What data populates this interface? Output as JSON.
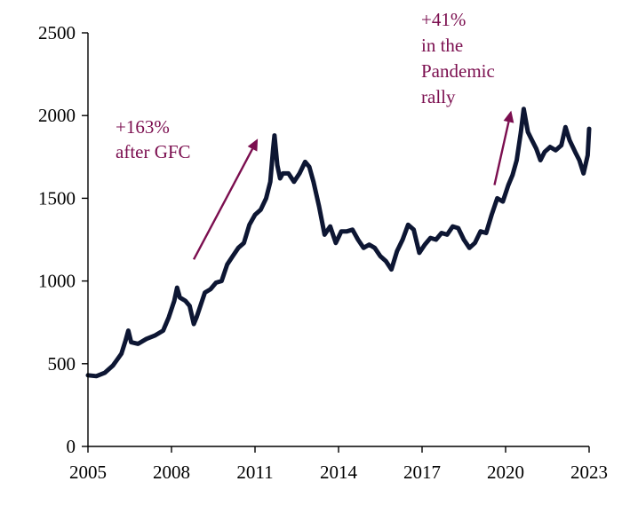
{
  "chart_data": {
    "type": "line",
    "title": "",
    "xlabel": "",
    "ylabel": "",
    "xlim": [
      2005,
      2023
    ],
    "ylim": [
      0,
      2500
    ],
    "x_ticks": [
      "2005",
      "2008",
      "2011",
      "2014",
      "2017",
      "2020",
      "2023"
    ],
    "y_ticks": [
      "0",
      "500",
      "1000",
      "1500",
      "2000",
      "2500"
    ],
    "grid": false,
    "legend": "none",
    "series": [
      {
        "color": "#0d1633",
        "points": [
          [
            2005.0,
            430
          ],
          [
            2005.3,
            425
          ],
          [
            2005.6,
            445
          ],
          [
            2005.9,
            490
          ],
          [
            2006.2,
            560
          ],
          [
            2006.35,
            640
          ],
          [
            2006.45,
            700
          ],
          [
            2006.55,
            630
          ],
          [
            2006.8,
            620
          ],
          [
            2007.1,
            650
          ],
          [
            2007.4,
            670
          ],
          [
            2007.7,
            700
          ],
          [
            2007.9,
            780
          ],
          [
            2008.1,
            880
          ],
          [
            2008.2,
            960
          ],
          [
            2008.3,
            900
          ],
          [
            2008.5,
            880
          ],
          [
            2008.65,
            850
          ],
          [
            2008.8,
            740
          ],
          [
            2008.9,
            780
          ],
          [
            2009.0,
            830
          ],
          [
            2009.2,
            930
          ],
          [
            2009.4,
            950
          ],
          [
            2009.6,
            990
          ],
          [
            2009.8,
            1000
          ],
          [
            2010.0,
            1100
          ],
          [
            2010.2,
            1150
          ],
          [
            2010.4,
            1200
          ],
          [
            2010.6,
            1230
          ],
          [
            2010.8,
            1340
          ],
          [
            2011.0,
            1400
          ],
          [
            2011.2,
            1430
          ],
          [
            2011.4,
            1500
          ],
          [
            2011.55,
            1600
          ],
          [
            2011.65,
            1800
          ],
          [
            2011.7,
            1880
          ],
          [
            2011.8,
            1700
          ],
          [
            2011.9,
            1620
          ],
          [
            2012.0,
            1650
          ],
          [
            2012.2,
            1650
          ],
          [
            2012.4,
            1600
          ],
          [
            2012.6,
            1650
          ],
          [
            2012.8,
            1720
          ],
          [
            2012.95,
            1690
          ],
          [
            2013.1,
            1600
          ],
          [
            2013.3,
            1450
          ],
          [
            2013.5,
            1280
          ],
          [
            2013.7,
            1330
          ],
          [
            2013.9,
            1230
          ],
          [
            2014.1,
            1300
          ],
          [
            2014.3,
            1300
          ],
          [
            2014.5,
            1310
          ],
          [
            2014.7,
            1250
          ],
          [
            2014.9,
            1200
          ],
          [
            2015.1,
            1220
          ],
          [
            2015.3,
            1200
          ],
          [
            2015.5,
            1150
          ],
          [
            2015.7,
            1120
          ],
          [
            2015.9,
            1070
          ],
          [
            2016.1,
            1180
          ],
          [
            2016.3,
            1250
          ],
          [
            2016.5,
            1340
          ],
          [
            2016.7,
            1310
          ],
          [
            2016.9,
            1170
          ],
          [
            2017.1,
            1220
          ],
          [
            2017.3,
            1260
          ],
          [
            2017.5,
            1250
          ],
          [
            2017.7,
            1290
          ],
          [
            2017.9,
            1280
          ],
          [
            2018.1,
            1330
          ],
          [
            2018.3,
            1320
          ],
          [
            2018.5,
            1250
          ],
          [
            2018.7,
            1200
          ],
          [
            2018.9,
            1230
          ],
          [
            2019.1,
            1300
          ],
          [
            2019.3,
            1290
          ],
          [
            2019.5,
            1400
          ],
          [
            2019.7,
            1500
          ],
          [
            2019.9,
            1480
          ],
          [
            2020.1,
            1580
          ],
          [
            2020.25,
            1640
          ],
          [
            2020.4,
            1730
          ],
          [
            2020.55,
            1900
          ],
          [
            2020.65,
            2040
          ],
          [
            2020.8,
            1900
          ],
          [
            2020.95,
            1850
          ],
          [
            2021.1,
            1800
          ],
          [
            2021.25,
            1730
          ],
          [
            2021.4,
            1780
          ],
          [
            2021.6,
            1810
          ],
          [
            2021.8,
            1790
          ],
          [
            2022.0,
            1820
          ],
          [
            2022.15,
            1930
          ],
          [
            2022.3,
            1850
          ],
          [
            2022.5,
            1780
          ],
          [
            2022.65,
            1730
          ],
          [
            2022.8,
            1650
          ],
          [
            2022.95,
            1760
          ],
          [
            2023.0,
            1920
          ]
        ]
      }
    ],
    "annotations": [
      {
        "lines": [
          "+163%",
          "after GFC"
        ],
        "color": "#7b0e4f",
        "arrow_from": [
          2008.8,
          1130
        ],
        "arrow_to": [
          2011.1,
          1860
        ]
      },
      {
        "lines": [
          "+41%",
          "in the",
          "Pandemic",
          "rally"
        ],
        "color": "#7b0e4f",
        "arrow_from": [
          2019.6,
          1580
        ],
        "arrow_to": [
          2020.2,
          2030
        ]
      }
    ]
  }
}
